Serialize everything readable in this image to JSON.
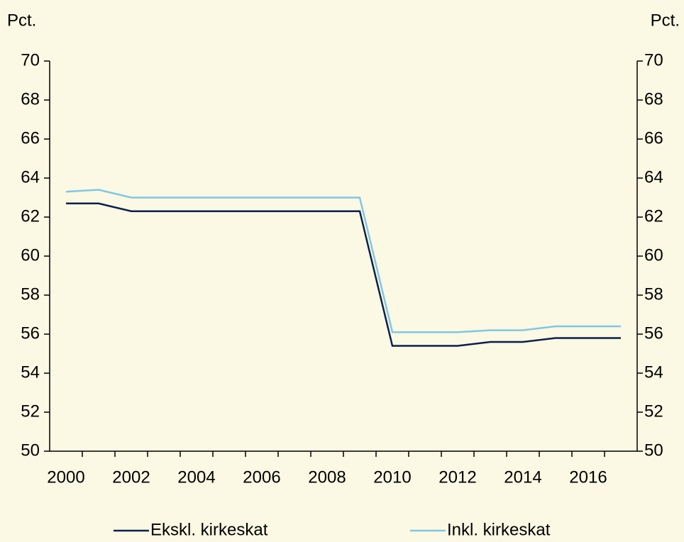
{
  "chart_data": {
    "type": "line",
    "y_label": "Pct.",
    "y2_label": "Pct.",
    "categories": [
      "2000",
      null,
      "2002",
      null,
      "2004",
      null,
      "2006",
      null,
      "2008",
      null,
      "2010",
      null,
      "2012",
      null,
      "2014",
      null,
      "2016",
      null
    ],
    "series": [
      {
        "name": "Ekskl. kirkeskat",
        "color": "#0b1f4f",
        "values": [
          62.7,
          62.7,
          62.3,
          62.3,
          62.3,
          62.3,
          62.3,
          62.3,
          62.3,
          62.3,
          55.4,
          55.4,
          55.4,
          55.6,
          55.6,
          55.8,
          55.8,
          55.8
        ]
      },
      {
        "name": "Inkl. kirkeskat",
        "color": "#7fc7e6",
        "values": [
          63.3,
          63.4,
          63.0,
          63.0,
          63.0,
          63.0,
          63.0,
          63.0,
          63.0,
          63.0,
          56.1,
          56.1,
          56.1,
          56.2,
          56.2,
          56.4,
          56.4,
          56.4
        ]
      }
    ],
    "ylim": [
      50,
      70
    ],
    "yticks": [
      50,
      52,
      54,
      56,
      58,
      60,
      62,
      64,
      66,
      68,
      70
    ],
    "y2lim": [
      50,
      70
    ],
    "y2ticks": [
      50,
      52,
      54,
      56,
      58,
      60,
      62,
      64,
      66,
      68,
      70
    ],
    "legend": "bottom"
  }
}
